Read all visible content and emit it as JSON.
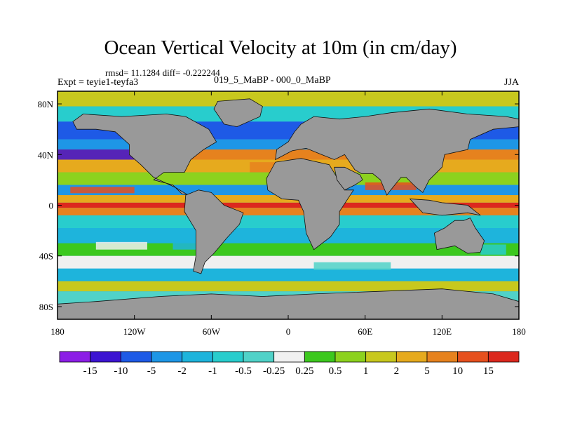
{
  "title": "Ocean Vertical Velocity at 10m (in cm/day)",
  "stats_text": "rmsd= 11.1284 diff= -0.222244",
  "experiment_text": "Expt = teyie1-teyfa3",
  "difference_text": "019_5_MaBP - 000_0_MaBP",
  "season": "JJA",
  "map_data": {
    "type": "filled-contour map",
    "projection": "cylindrical equidistant",
    "lon_range": [
      -180,
      180
    ],
    "lat_range": [
      -90,
      90
    ],
    "x_ticks": [
      {
        "lon": -180,
        "label": "180"
      },
      {
        "lon": -120,
        "label": "120W"
      },
      {
        "lon": -60,
        "label": "60W"
      },
      {
        "lon": 0,
        "label": "0"
      },
      {
        "lon": 60,
        "label": "60E"
      },
      {
        "lon": 120,
        "label": "120E"
      },
      {
        "lon": 180,
        "label": "180"
      }
    ],
    "y_ticks": [
      {
        "lat": 80,
        "label": "80N"
      },
      {
        "lat": 40,
        "label": "40N"
      },
      {
        "lat": 0,
        "label": "0"
      },
      {
        "lat": -40,
        "label": "40S"
      },
      {
        "lat": -80,
        "label": "80S"
      }
    ],
    "land_color": "#999999"
  },
  "colorbar": {
    "labels": [
      "-15",
      "-10",
      "-5",
      "-2",
      "-1",
      "-0.5",
      "-0.25",
      "0.25",
      "0.5",
      "1",
      "2",
      "5",
      "10",
      "15"
    ],
    "colors": [
      "#8c1ee6",
      "#3c14d2",
      "#1e5ae6",
      "#1e96e6",
      "#1eb4dc",
      "#28cdcd",
      "#50d2c8",
      "#f0f0f0",
      "#3cc81e",
      "#8cd21e",
      "#c8c81e",
      "#e6aa1e",
      "#e6821e",
      "#e6501e",
      "#dc281e"
    ]
  }
}
